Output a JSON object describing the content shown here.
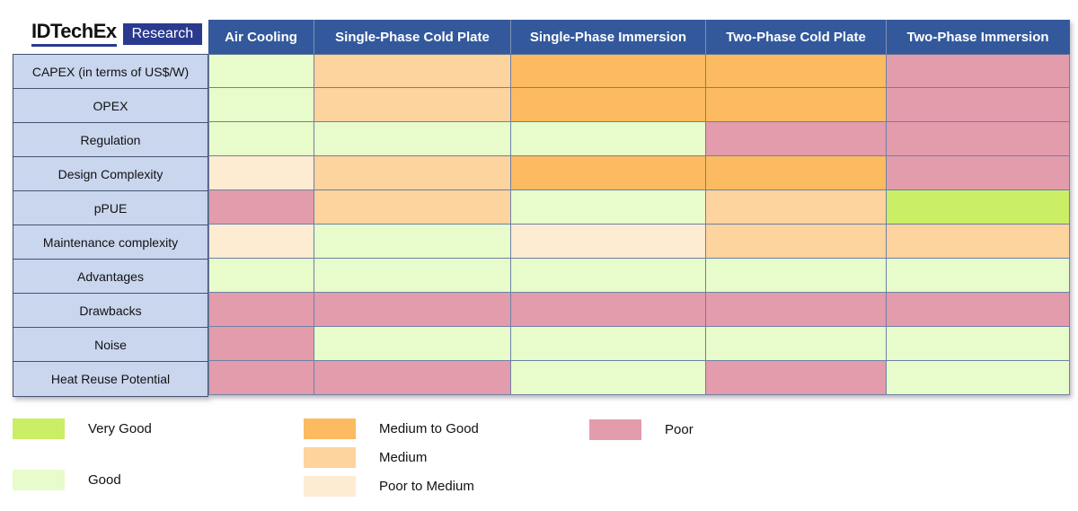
{
  "logo": {
    "brand": "IDTechEx",
    "research": "Research"
  },
  "table": {
    "columns": [
      "Air Cooling",
      "Single-Phase Cold Plate",
      "Single-Phase Immersion",
      "Two-Phase Cold Plate",
      "Two-Phase Immersion"
    ],
    "rows": [
      {
        "label": "CAPEX (in terms of US$/W)",
        "ratings": [
          "good",
          "medium",
          "medium_good",
          "medium_good",
          "poor"
        ]
      },
      {
        "label": "OPEX",
        "ratings": [
          "good",
          "medium",
          "medium_good",
          "medium_good",
          "poor"
        ]
      },
      {
        "label": "Regulation",
        "ratings": [
          "good",
          "good",
          "good",
          "poor",
          "poor"
        ]
      },
      {
        "label": "Design Complexity",
        "ratings": [
          "poor_medium",
          "medium",
          "medium_good",
          "medium_good",
          "poor"
        ]
      },
      {
        "label": "pPUE",
        "ratings": [
          "poor",
          "medium",
          "good",
          "medium",
          "very_good"
        ]
      },
      {
        "label": "Maintenance complexity",
        "ratings": [
          "poor_medium",
          "good",
          "poor_medium",
          "medium",
          "medium"
        ]
      },
      {
        "label": "Advantages",
        "ratings": [
          "good",
          "good",
          "good",
          "good",
          "good"
        ]
      },
      {
        "label": "Drawbacks",
        "ratings": [
          "poor",
          "poor",
          "poor",
          "poor",
          "poor"
        ]
      },
      {
        "label": "Noise",
        "ratings": [
          "poor",
          "good",
          "good",
          "good",
          "good"
        ]
      },
      {
        "label": "Heat Reuse Potential",
        "ratings": [
          "poor",
          "poor",
          "good",
          "poor",
          "good"
        ]
      }
    ]
  },
  "legend": {
    "items": [
      {
        "key": "very_good",
        "label": "Very Good"
      },
      {
        "key": "good",
        "label": "Good"
      },
      {
        "key": "medium_good",
        "label": "Medium to Good"
      },
      {
        "key": "medium",
        "label": "Medium"
      },
      {
        "key": "poor_medium",
        "label": "Poor to Medium"
      },
      {
        "key": "poor",
        "label": "Poor"
      }
    ]
  },
  "colors": {
    "very_good": "#caee66",
    "good": "#e8fbca",
    "medium_good": "#fcbb60",
    "medium": "#fdd39e",
    "poor_medium": "#fdebd2",
    "poor": "#e29cab",
    "header_bg": "#33599c",
    "label_bg": "#c9d6ee",
    "logo_navy": "#2a3a8f"
  },
  "chart_data": {
    "type": "heatmap",
    "title": "",
    "x_categories": [
      "Air Cooling",
      "Single-Phase Cold Plate",
      "Single-Phase Immersion",
      "Two-Phase Cold Plate",
      "Two-Phase Immersion"
    ],
    "y_categories": [
      "CAPEX (in terms of US$/W)",
      "OPEX",
      "Regulation",
      "Design Complexity",
      "pPUE",
      "Maintenance complexity",
      "Advantages",
      "Drawbacks",
      "Noise",
      "Heat Reuse Potential"
    ],
    "scale": [
      "Very Good",
      "Good",
      "Medium to Good",
      "Medium",
      "Poor to Medium",
      "Poor"
    ],
    "values": [
      [
        "Good",
        "Medium",
        "Medium to Good",
        "Medium to Good",
        "Poor"
      ],
      [
        "Good",
        "Medium",
        "Medium to Good",
        "Medium to Good",
        "Poor"
      ],
      [
        "Good",
        "Good",
        "Good",
        "Poor",
        "Poor"
      ],
      [
        "Poor to Medium",
        "Medium",
        "Medium to Good",
        "Medium to Good",
        "Poor"
      ],
      [
        "Poor",
        "Medium",
        "Good",
        "Medium",
        "Very Good"
      ],
      [
        "Poor to Medium",
        "Good",
        "Poor to Medium",
        "Medium",
        "Medium"
      ],
      [
        "Good",
        "Good",
        "Good",
        "Good",
        "Good"
      ],
      [
        "Poor",
        "Poor",
        "Poor",
        "Poor",
        "Poor"
      ],
      [
        "Poor",
        "Good",
        "Good",
        "Good",
        "Good"
      ],
      [
        "Poor",
        "Poor",
        "Good",
        "Poor",
        "Good"
      ]
    ],
    "legend_position": "bottom",
    "grid": true
  }
}
